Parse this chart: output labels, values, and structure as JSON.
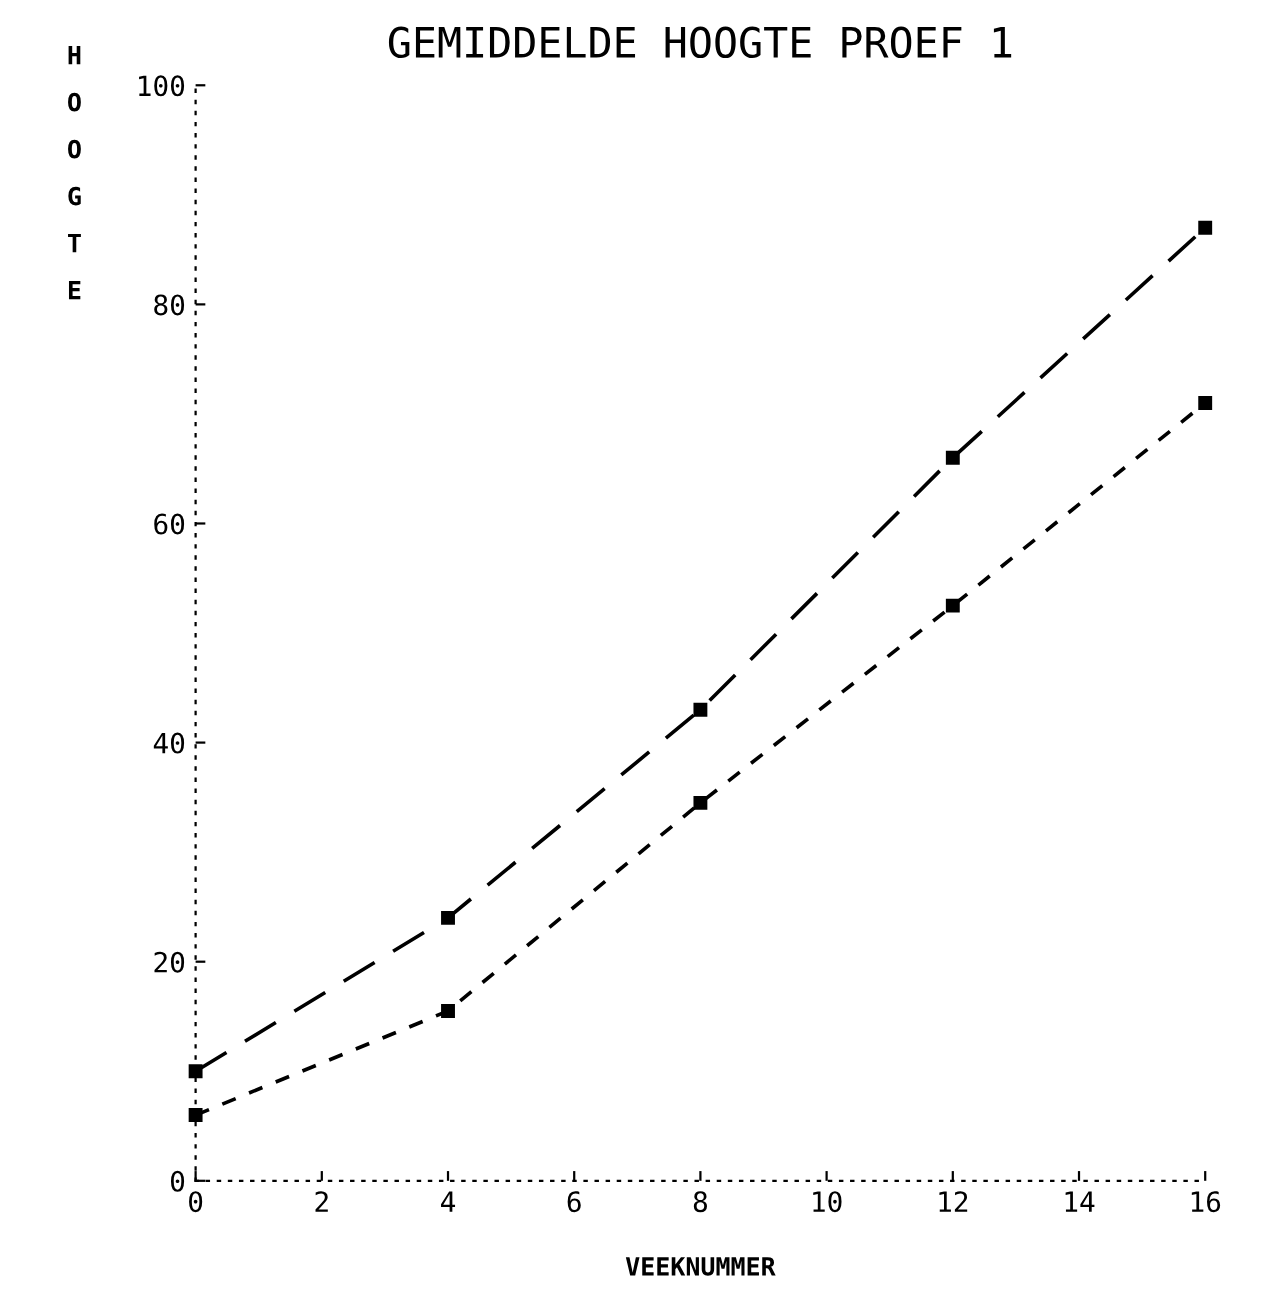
{
  "chart_data": {
    "type": "line",
    "title": "GEMIDDELDE HOOGTE PROEF 1",
    "xlabel": "VEEKNUMMER",
    "ylabel": "HOOGTE",
    "x": [
      0,
      4,
      8,
      12,
      16
    ],
    "series": [
      {
        "color": "#000000",
        "line_style": "dashed",
        "values": [
          10,
          24,
          43,
          66,
          87
        ]
      },
      {
        "color": "#000000",
        "line_style": "dotted",
        "values": [
          6,
          15.5,
          34.5,
          52.5,
          71
        ]
      }
    ],
    "xlim": [
      0,
      16
    ],
    "xticks": [
      0,
      2,
      4,
      6,
      8,
      10,
      12,
      14,
      16
    ],
    "ylim": [
      0,
      100
    ],
    "yticks": [
      0,
      20,
      40,
      60,
      80,
      100
    ],
    "marker": "square"
  }
}
